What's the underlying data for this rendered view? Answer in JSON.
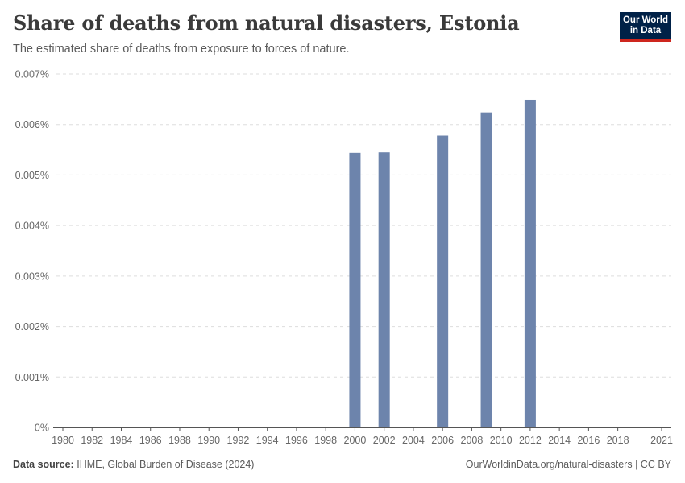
{
  "header": {
    "title": "Share of deaths from natural disasters, Estonia",
    "subtitle": "The estimated share of deaths from exposure to forces of nature."
  },
  "logo": {
    "line1": "Our World",
    "line2": "in Data"
  },
  "footer": {
    "source_label": "Data source:",
    "source_text": "IHME, Global Burden of Disease (2024)",
    "url": "OurWorldinData.org/natural-disasters",
    "separator": " | ",
    "license": "CC BY"
  },
  "colors": {
    "bar": "#6d84ac",
    "grid": "#dddddd",
    "axis": "#555555",
    "tick_text": "#666666"
  },
  "chart_data": {
    "type": "bar",
    "title": "Share of deaths from natural disasters, Estonia",
    "xlabel": "",
    "ylabel": "",
    "xlim": [
      1980,
      2021
    ],
    "ylim": [
      0,
      0.007
    ],
    "y_ticks": [
      0,
      0.001,
      0.002,
      0.003,
      0.004,
      0.005,
      0.006,
      0.007
    ],
    "y_tick_labels": [
      "0%",
      "0.001%",
      "0.002%",
      "0.003%",
      "0.004%",
      "0.005%",
      "0.006%",
      "0.007%"
    ],
    "x_ticks": [
      1980,
      1982,
      1984,
      1986,
      1988,
      1990,
      1992,
      1994,
      1996,
      1998,
      2000,
      2002,
      2004,
      2006,
      2008,
      2010,
      2012,
      2014,
      2016,
      2018,
      2021
    ],
    "x_tick_labels": [
      "1980",
      "1982",
      "1984",
      "1986",
      "1988",
      "1990",
      "1992",
      "1994",
      "1996",
      "1998",
      "2000",
      "2002",
      "2004",
      "2006",
      "2008",
      "2010",
      "2012",
      "2014",
      "2016",
      "2018",
      "2021"
    ],
    "series": [
      {
        "name": "Share of deaths from natural disasters",
        "points": [
          {
            "year": 2000,
            "value": 0.00544
          },
          {
            "year": 2002,
            "value": 0.00545
          },
          {
            "year": 2006,
            "value": 0.00578
          },
          {
            "year": 2009,
            "value": 0.00624
          },
          {
            "year": 2012,
            "value": 0.00649
          }
        ]
      }
    ]
  }
}
